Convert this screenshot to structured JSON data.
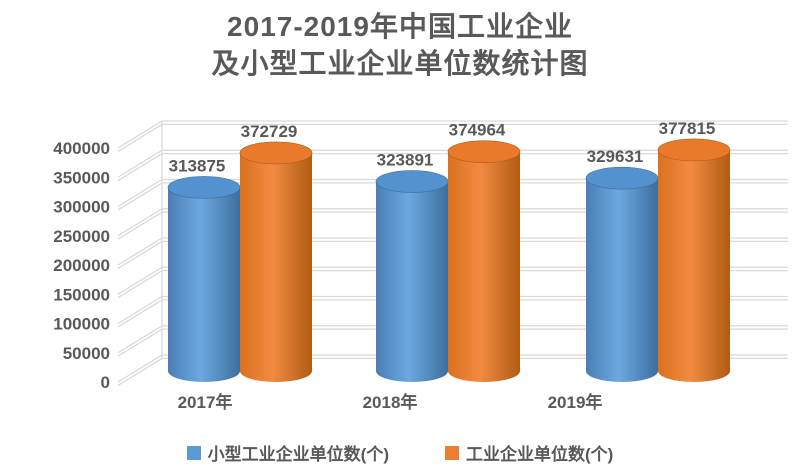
{
  "title": {
    "line1": "2017-2019年中国工业企业",
    "line2": "及小型工业企业单位数统计图"
  },
  "chart_data": {
    "type": "bar",
    "style": "3d-cylinder",
    "title": "2017-2019年中国工业企业及小型工业企业单位数统计图",
    "categories": [
      "2017年",
      "2018年",
      "2019年"
    ],
    "series": [
      {
        "name": "小型工业企业单位数(个)",
        "color": "#5B9BD5",
        "gradient": [
          "#4A7EB5",
          "#6CA9E0",
          "#3C6E9E"
        ],
        "top_color": "#5392CE",
        "values": [
          313875,
          323891,
          329631
        ]
      },
      {
        "name": "工业企业单位数(个)",
        "color": "#ED7D31",
        "gradient": [
          "#D9711F",
          "#F28B42",
          "#B05C12"
        ],
        "top_color": "#EA7A2B",
        "values": [
          372729,
          374964,
          377815
        ]
      }
    ],
    "ylim": [
      0,
      400000
    ],
    "ytick_step": 50000,
    "y_tick_labels": [
      "0",
      "50000",
      "100000",
      "150000",
      "200000",
      "250000",
      "300000",
      "350000",
      "400000"
    ],
    "xlabel": "",
    "ylabel": "",
    "grid": true,
    "data_labels": true,
    "legend_position": "bottom",
    "background": "#FFFFFF",
    "text_color": "#595959",
    "gridline_color": "#D9D9D9"
  }
}
